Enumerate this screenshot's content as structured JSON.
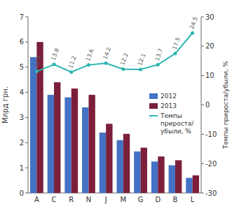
{
  "chart_data": {
    "type": "bar",
    "categories": [
      "A",
      "C",
      "R",
      "N",
      "J",
      "M",
      "G",
      "D",
      "B",
      "L"
    ],
    "series": [
      {
        "name": "2012",
        "color": "#4472C4",
        "values": [
          5.4,
          3.9,
          3.8,
          3.4,
          2.4,
          2.1,
          1.65,
          1.25,
          1.1,
          0.6
        ]
      },
      {
        "name": "2013",
        "color": "#7B1F3A",
        "values": [
          6.0,
          4.4,
          4.15,
          3.9,
          2.75,
          2.35,
          1.8,
          1.45,
          1.3,
          0.7
        ]
      },
      {
        "name": "Темпы\nприроста/\nубыли, %",
        "type": "line",
        "axis": "y2",
        "color": "#2BB5B0",
        "marker": "circle",
        "data_labels": true,
        "values": [
          11.4,
          13.8,
          11.2,
          13.6,
          14.2,
          12.2,
          12.1,
          13.7,
          17.5,
          24.5
        ]
      }
    ],
    "ylabel": "Млрд грн.",
    "y2label": "Темпы прироста/убыли, %",
    "ylim": [
      0,
      7
    ],
    "yticks": [
      0,
      1,
      2,
      3,
      4,
      5,
      6,
      7
    ],
    "y2lim": [
      -30,
      30
    ],
    "y2ticks": [
      -30,
      -20,
      -10,
      0,
      10,
      20,
      30
    ],
    "grid": false,
    "legend": "right"
  }
}
